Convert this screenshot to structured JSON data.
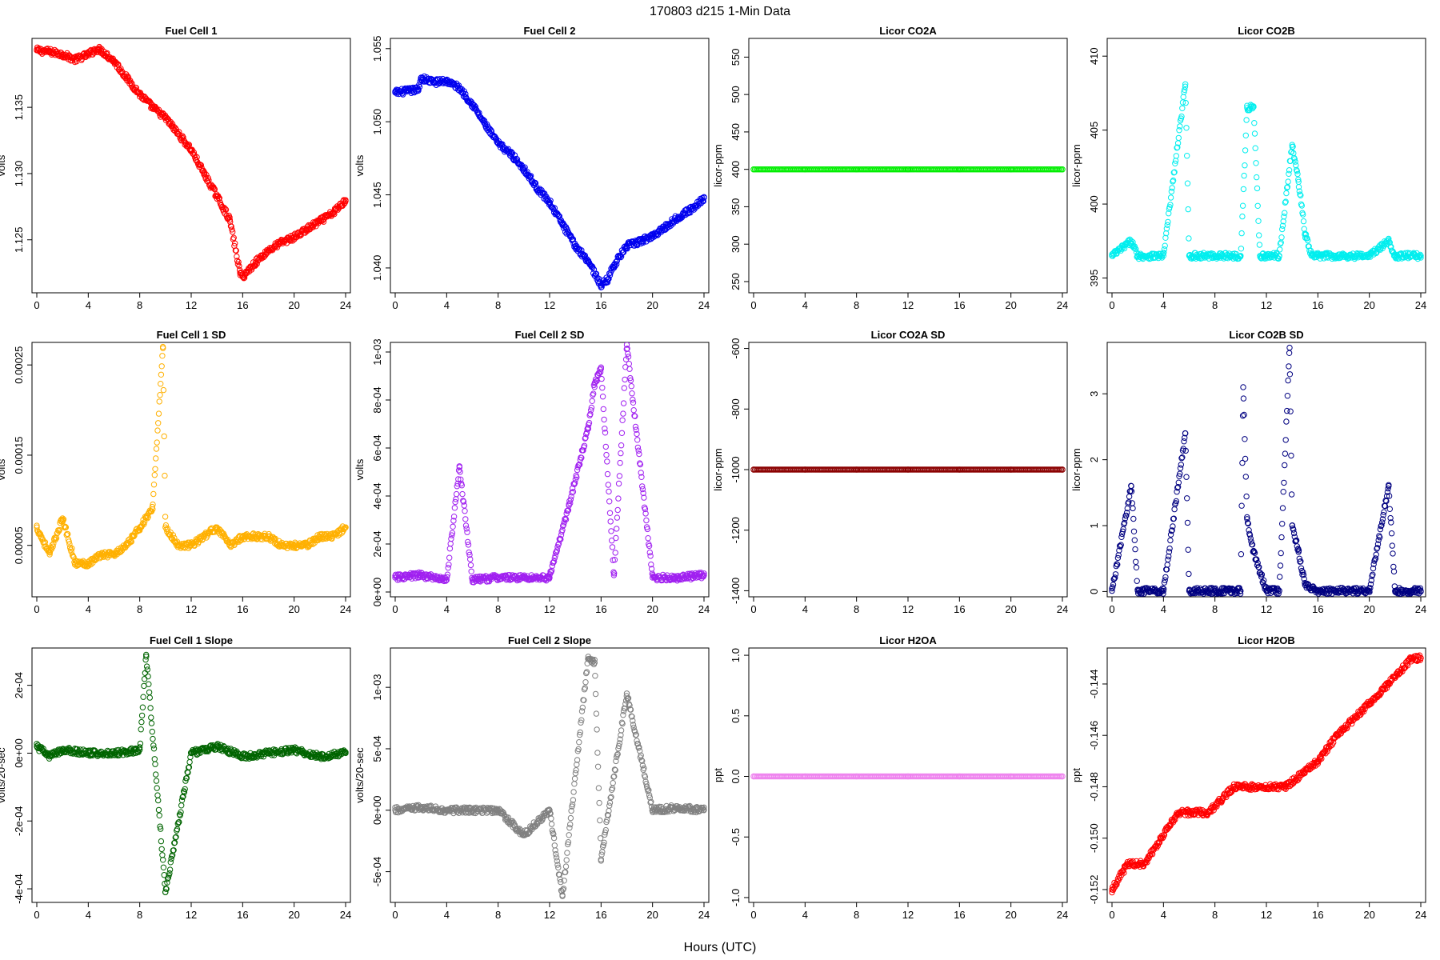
{
  "figure": {
    "title": "170803   d215   1-Min Data",
    "xlabel": "Hours (UTC)"
  },
  "chart_data": [
    {
      "type": "scatter",
      "title": "Fuel Cell 1",
      "ylabel": "volts",
      "color": "#ff0000",
      "xlim": [
        0,
        24
      ],
      "xticks": [
        0,
        4,
        8,
        12,
        16,
        20,
        24
      ],
      "ylim": [
        1.121,
        1.1402
      ],
      "yticks": [
        1.125,
        1.13,
        1.135
      ],
      "yticklabels": [
        "1.125",
        "1.130",
        "1.135"
      ],
      "x": [
        0,
        1,
        2,
        3,
        4,
        4.7,
        5,
        6,
        7,
        8,
        9,
        10,
        11,
        12,
        13,
        14,
        15,
        15.8,
        16,
        17,
        18,
        19,
        20,
        21,
        22,
        23,
        24
      ],
      "y": [
        1.1393,
        1.1392,
        1.139,
        1.1386,
        1.139,
        1.1394,
        1.1393,
        1.1385,
        1.1372,
        1.136,
        1.135,
        1.1342,
        1.133,
        1.1318,
        1.13,
        1.1283,
        1.1265,
        1.1225,
        1.1222,
        1.1233,
        1.1242,
        1.1248,
        1.1252,
        1.1258,
        1.1264,
        1.127,
        1.128
      ]
    },
    {
      "type": "scatter",
      "title": "Fuel Cell 2",
      "ylabel": "volts",
      "color": "#0000ee",
      "xlim": [
        0,
        24
      ],
      "xticks": [
        0,
        4,
        8,
        12,
        16,
        20,
        24
      ],
      "ylim": [
        1.0383,
        1.0557
      ],
      "yticks": [
        1.04,
        1.045,
        1.05,
        1.055
      ],
      "yticklabels": [
        "1.040",
        "1.045",
        "1.050",
        "1.055"
      ],
      "x": [
        0,
        1,
        1.8,
        2,
        3,
        4,
        5,
        6,
        7,
        8,
        9,
        10,
        11,
        12,
        13,
        14,
        15,
        16,
        16.5,
        17,
        18,
        19,
        20,
        21,
        22,
        23,
        24
      ],
      "y": [
        1.052,
        1.0521,
        1.0522,
        1.053,
        1.0527,
        1.0528,
        1.0523,
        1.0512,
        1.0498,
        1.0485,
        1.0478,
        1.0468,
        1.0455,
        1.0445,
        1.043,
        1.0415,
        1.0405,
        1.0388,
        1.0392,
        1.0402,
        1.0415,
        1.0418,
        1.0422,
        1.0428,
        1.0435,
        1.044,
        1.0448
      ]
    },
    {
      "type": "scatter",
      "title": "Licor CO2A",
      "ylabel": "licor-ppm",
      "color": "#00ee00",
      "xlim": [
        0,
        24
      ],
      "xticks": [
        0,
        4,
        8,
        12,
        16,
        20,
        24
      ],
      "ylim": [
        235,
        575
      ],
      "yticks": [
        250,
        300,
        350,
        400,
        450,
        500,
        550
      ],
      "yticklabels": [
        "250",
        "300",
        "350",
        "400",
        "450",
        "500",
        "550"
      ],
      "x": [
        0,
        4,
        8,
        12,
        16,
        20,
        24
      ],
      "y": [
        400,
        400,
        400,
        400,
        400,
        400,
        400
      ]
    },
    {
      "type": "scatter",
      "title": "Licor CO2B",
      "ylabel": "licor-ppm",
      "color": "#00eeee",
      "xlim": [
        0,
        24
      ],
      "xticks": [
        0,
        4,
        8,
        12,
        16,
        20,
        24
      ],
      "ylim": [
        394,
        411.2
      ],
      "yticks": [
        395,
        400,
        405,
        410
      ],
      "yticklabels": [
        "395",
        "400",
        "405",
        "410"
      ],
      "x": [
        0,
        1.5,
        2,
        4,
        5.7,
        6,
        8,
        10,
        10.5,
        11,
        11.5,
        12,
        13,
        14,
        14.5,
        15,
        15.5,
        16,
        18,
        20,
        21.5,
        22,
        24
      ],
      "y": [
        396.5,
        397.5,
        396.5,
        396.5,
        408.1,
        396.5,
        396.5,
        396.5,
        406.5,
        406.6,
        396.5,
        396.5,
        396.5,
        404,
        401.5,
        398,
        396.5,
        396.5,
        396.5,
        396.5,
        397.5,
        396.5,
        396.5
      ]
    },
    {
      "type": "scatter",
      "title": "Fuel Cell 1 SD",
      "ylabel": "volts",
      "color": "#ffb000",
      "xlim": [
        0,
        24
      ],
      "xticks": [
        0,
        4,
        8,
        12,
        16,
        20,
        24
      ],
      "ylim": [
        -7e-06,
        0.000275
      ],
      "yticks": [
        5e-05,
        0.00015,
        0.00025
      ],
      "yticklabels": [
        "0.00005",
        "0.00015",
        "0.00025"
      ],
      "x": [
        0,
        1,
        2,
        3,
        4,
        5,
        6,
        7,
        8,
        9,
        9.8,
        10,
        11,
        12,
        13,
        14,
        15,
        16,
        17,
        18,
        19,
        20,
        21,
        22,
        23,
        24
      ],
      "y": [
        7e-05,
        4e-05,
        8e-05,
        3e-05,
        3e-05,
        4e-05,
        4e-05,
        5e-05,
        7e-05,
        9e-05,
        0.00027,
        7e-05,
        5e-05,
        5e-05,
        6e-05,
        7e-05,
        5e-05,
        6e-05,
        6e-05,
        6e-05,
        5e-05,
        5e-05,
        5e-05,
        6e-05,
        6e-05,
        7e-05
      ]
    },
    {
      "type": "scatter",
      "title": "Fuel Cell 2 SD",
      "ylabel": "volts",
      "color": "#a020f0",
      "xlim": [
        0,
        24
      ],
      "xticks": [
        0,
        4,
        8,
        12,
        16,
        20,
        24
      ],
      "ylim": [
        -2e-05,
        0.00104
      ],
      "yticks": [
        0,
        0.0002,
        0.0004,
        0.0006,
        0.0008,
        0.001
      ],
      "yticklabels": [
        "0e+00",
        "2e-04",
        "4e-04",
        "6e-04",
        "8e-04",
        "1e-03"
      ],
      "x": [
        0,
        2,
        4,
        5,
        6,
        8,
        10,
        12,
        13.5,
        15,
        15.5,
        16,
        17,
        18,
        20,
        22,
        24
      ],
      "y": [
        6e-05,
        7e-05,
        5e-05,
        0.00052,
        5e-05,
        6e-05,
        6e-05,
        6e-05,
        0.00036,
        0.00068,
        0.00087,
        0.00093,
        7e-05,
        0.00103,
        6e-05,
        6e-05,
        7e-05
      ]
    },
    {
      "type": "scatter",
      "title": "Licor CO2A SD",
      "ylabel": "licor-ppm",
      "color": "#8b0000",
      "xlim": [
        0,
        24
      ],
      "xticks": [
        0,
        4,
        8,
        12,
        16,
        20,
        24
      ],
      "ylim": [
        -1420,
        -580
      ],
      "yticks": [
        -1400,
        -1200,
        -1000,
        -800,
        -600
      ],
      "yticklabels": [
        "-1400",
        "-1200",
        "-1000",
        "-800",
        "-600"
      ],
      "x": [
        0,
        4,
        8,
        12,
        16,
        20,
        24
      ],
      "y": [
        -1000,
        -1000,
        -1000,
        -1000,
        -1000,
        -1000,
        -1000
      ]
    },
    {
      "type": "scatter",
      "title": "Licor CO2B SD",
      "ylabel": "licor-ppm",
      "color": "#000080",
      "xlim": [
        0,
        24
      ],
      "xticks": [
        0,
        4,
        8,
        12,
        16,
        20,
        24
      ],
      "ylim": [
        -0.08,
        3.78
      ],
      "yticks": [
        0,
        1,
        2,
        3
      ],
      "yticklabels": [
        "0",
        "1",
        "2",
        "3"
      ],
      "x": [
        0,
        1.5,
        2,
        4,
        5.7,
        6,
        8,
        10,
        10.2,
        10.5,
        11,
        12,
        13,
        13.8,
        14,
        14.5,
        15,
        16,
        18,
        20,
        21.5,
        22,
        24
      ],
      "y": [
        0.01,
        1.6,
        0.01,
        0.01,
        2.4,
        0.01,
        0.01,
        0.01,
        3.1,
        1.1,
        0.6,
        0.01,
        0.01,
        3.7,
        1.0,
        0.6,
        0.1,
        0.01,
        0.01,
        0.01,
        1.6,
        0.01,
        0.01
      ]
    },
    {
      "type": "scatter",
      "title": "Fuel Cell 1 Slope",
      "ylabel": "volts/20-sec",
      "color": "#006400",
      "xlim": [
        0,
        24
      ],
      "xticks": [
        0,
        4,
        8,
        12,
        16,
        20,
        24
      ],
      "ylim": [
        -0.00044,
        0.00031
      ],
      "yticks": [
        -0.0004,
        -0.0002,
        0,
        0.0002
      ],
      "yticklabels": [
        "-4e-04",
        "-2e-04",
        "0e+00",
        "2e-04"
      ],
      "x": [
        0,
        1,
        2,
        4,
        6,
        8,
        8.5,
        10,
        12,
        14,
        16,
        18,
        20,
        22,
        24
      ],
      "y": [
        2e-05,
        -1e-05,
        1e-05,
        0,
        0,
        1e-05,
        0.00029,
        -0.00041,
        0,
        2e-05,
        -1e-05,
        0,
        1e-05,
        -1e-05,
        0
      ]
    },
    {
      "type": "scatter",
      "title": "Fuel Cell 2 Slope",
      "ylabel": "volts/20-sec",
      "color": "#808080",
      "xlim": [
        0,
        24
      ],
      "xticks": [
        0,
        4,
        8,
        12,
        16,
        20,
        24
      ],
      "ylim": [
        -0.00075,
        0.00132
      ],
      "yticks": [
        -0.0005,
        0,
        0.0005,
        0.001
      ],
      "yticklabels": [
        "-5e-04",
        "0e+00",
        "5e-04",
        "1e-03"
      ],
      "x": [
        0,
        2,
        4,
        6,
        8,
        10,
        12,
        13,
        15,
        15.5,
        16,
        18,
        20,
        22,
        24
      ],
      "y": [
        0,
        2e-05,
        0,
        0,
        0,
        -0.0002,
        0,
        -0.0007,
        0.00125,
        0.0012,
        -0.0004,
        0.00095,
        0,
        2e-05,
        0
      ]
    },
    {
      "type": "scatter",
      "title": "Licor H2OA",
      "ylabel": "ppt",
      "color": "#ee82ee",
      "xlim": [
        0,
        24
      ],
      "xticks": [
        0,
        4,
        8,
        12,
        16,
        20,
        24
      ],
      "ylim": [
        -1.04,
        1.06
      ],
      "yticks": [
        -1.0,
        -0.5,
        0.0,
        0.5,
        1.0
      ],
      "yticklabels": [
        "-1.0",
        "-0.5",
        "0.0",
        "0.5",
        "1.0"
      ],
      "x": [
        0,
        4,
        8,
        12,
        16,
        20,
        24
      ],
      "y": [
        0,
        0,
        0,
        0,
        0,
        0,
        0
      ]
    },
    {
      "type": "scatter",
      "title": "Licor H2OB",
      "ylabel": "ppt",
      "color": "#ff0000",
      "xlim": [
        0,
        24
      ],
      "xticks": [
        0,
        4,
        8,
        12,
        16,
        20,
        24
      ],
      "ylim": [
        -0.1525,
        -0.1426
      ],
      "yticks": [
        -0.152,
        -0.15,
        -0.148,
        -0.146,
        -0.144
      ],
      "yticklabels": [
        "-0.152",
        "-0.150",
        "-0.148",
        "-0.146",
        "-0.144"
      ],
      "x": [
        0,
        1.2,
        2.5,
        3.8,
        5.2,
        7.5,
        9.5,
        11.5,
        13.5,
        16,
        17.5,
        19.5,
        21.5,
        23.3,
        24
      ],
      "y": [
        -0.152,
        -0.151,
        -0.151,
        -0.15,
        -0.149,
        -0.149,
        -0.148,
        -0.148,
        -0.148,
        -0.147,
        -0.146,
        -0.145,
        -0.144,
        -0.143,
        -0.143
      ]
    }
  ]
}
